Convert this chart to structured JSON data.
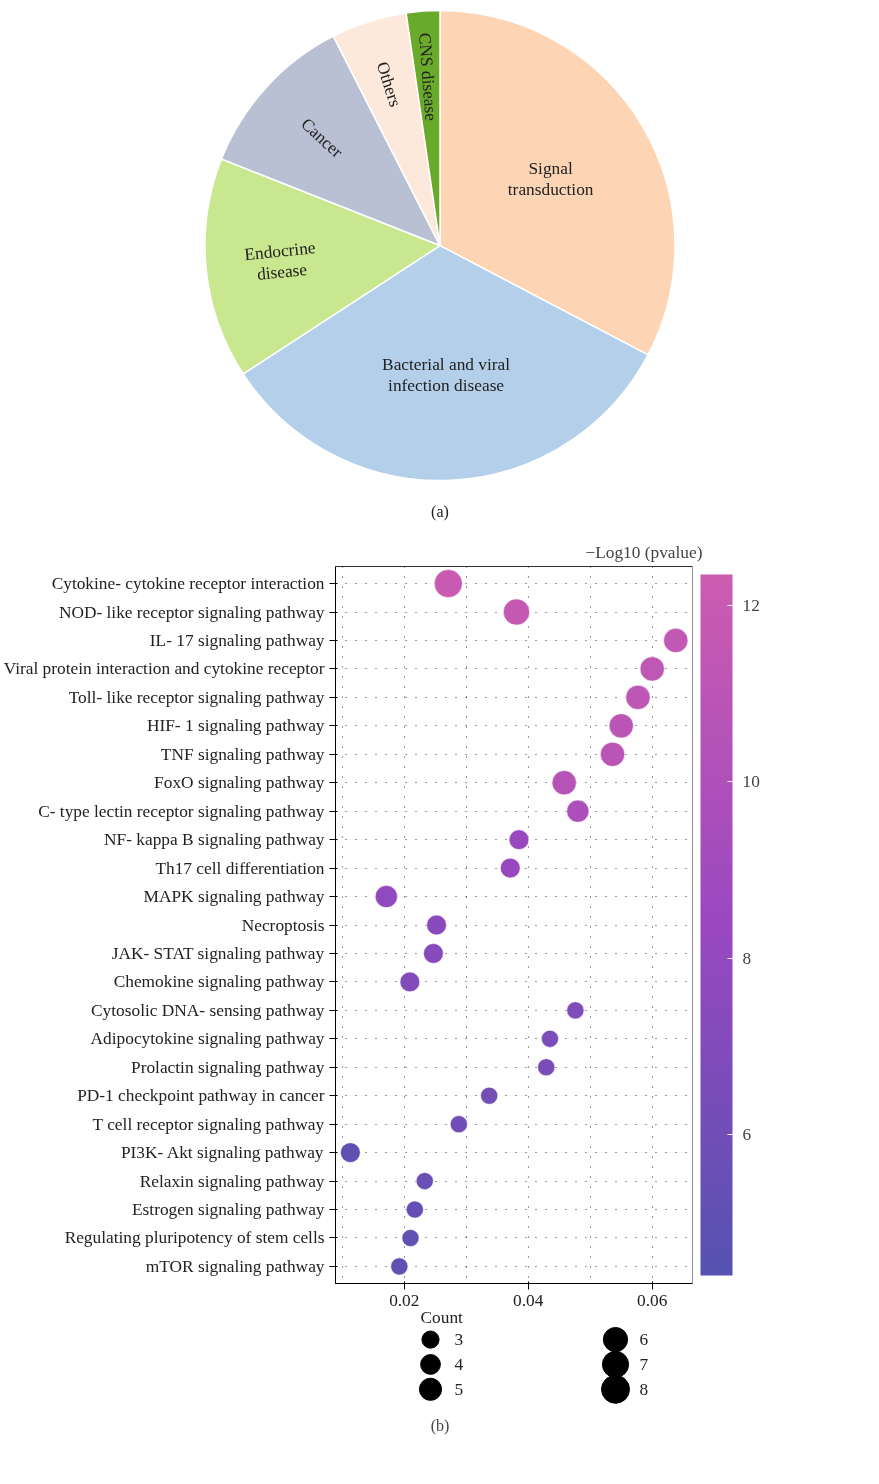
{
  "chart_data": [
    {
      "type": "pie",
      "categories": [
        "Signal transduction",
        "Bacterial and viral infection disease",
        "Endocrine disease",
        "Cancer",
        "Others",
        "CNS disease"
      ],
      "values": [
        32.7,
        33.1,
        15.2,
        11.5,
        5.2,
        2.3
      ],
      "colors": [
        "#fdd5b5",
        "#b3cfea",
        "#c8e78f",
        "#b9c0d3",
        "#fde8dc",
        "#6aaa2a"
      ],
      "annotations": [
        "(a)"
      ]
    },
    {
      "type": "bubble",
      "orientation": "horizontal",
      "categories": [
        "Cytokine- cytokine receptor interaction",
        "NOD- like receptor signaling pathway",
        "IL- 17 signaling pathway",
        "Viral protein interaction and cytokine receptor",
        "Toll- like receptor signaling pathway",
        "HIF- 1 signaling pathway",
        "TNF signaling pathway",
        "FoxO signaling pathway",
        "C- type lectin receptor signaling pathway",
        "NF- kappa B signaling pathway",
        "Th17 cell differentiation",
        "MAPK signaling pathway",
        "Necroptosis",
        "JAK- STAT signaling pathway",
        "Chemokine signaling pathway",
        "Cytosolic DNA- sensing pathway",
        "Adipocytokine signaling pathway",
        "Prolactin signaling pathway",
        "PD-1 checkpoint pathway in cancer",
        "T cell receptor signaling pathway",
        "PI3K- Akt signaling pathway",
        "Relaxin signaling pathway",
        "Estrogen signaling pathway",
        "Regulating pluripotency of stem cells",
        "mTOR signaling pathway"
      ],
      "values": [
        0.0271,
        0.0381,
        0.0638,
        0.06,
        0.0577,
        0.055,
        0.0536,
        0.0458,
        0.048,
        0.0385,
        0.0371,
        0.0171,
        0.0252,
        0.0247,
        0.0209,
        0.0476,
        0.0435,
        0.0429,
        0.0337,
        0.0288,
        0.0113,
        0.0233,
        0.0217,
        0.021,
        0.0192
      ],
      "sizes": [
        8,
        7,
        6,
        6,
        6,
        6,
        6,
        6,
        5,
        4,
        4,
        5,
        4,
        4,
        4,
        3,
        3,
        3,
        3,
        3,
        4,
        3,
        3,
        3,
        3
      ],
      "size_legend": [
        3,
        4,
        5,
        6,
        7,
        8
      ],
      "legend_title": "Count",
      "cvalues": [
        12.0,
        11.8,
        11.5,
        11.3,
        11.2,
        11.0,
        11.0,
        10.5,
        9.8,
        8.3,
        8.2,
        7.8,
        7.4,
        7.3,
        7.0,
        6.8,
        6.6,
        6.5,
        6.2,
        6.0,
        5.0,
        5.6,
        5.4,
        5.2,
        5.0
      ],
      "clim": [
        4.4,
        12.35
      ],
      "cticks": [
        6,
        8,
        10,
        12
      ],
      "clabel": "−Log10 (pvalue)",
      "xlim": [
        0.0089,
        0.0665
      ],
      "xticks": [
        0.02,
        0.04,
        0.06
      ],
      "grid": true,
      "annotations": [
        "(b)"
      ]
    }
  ]
}
